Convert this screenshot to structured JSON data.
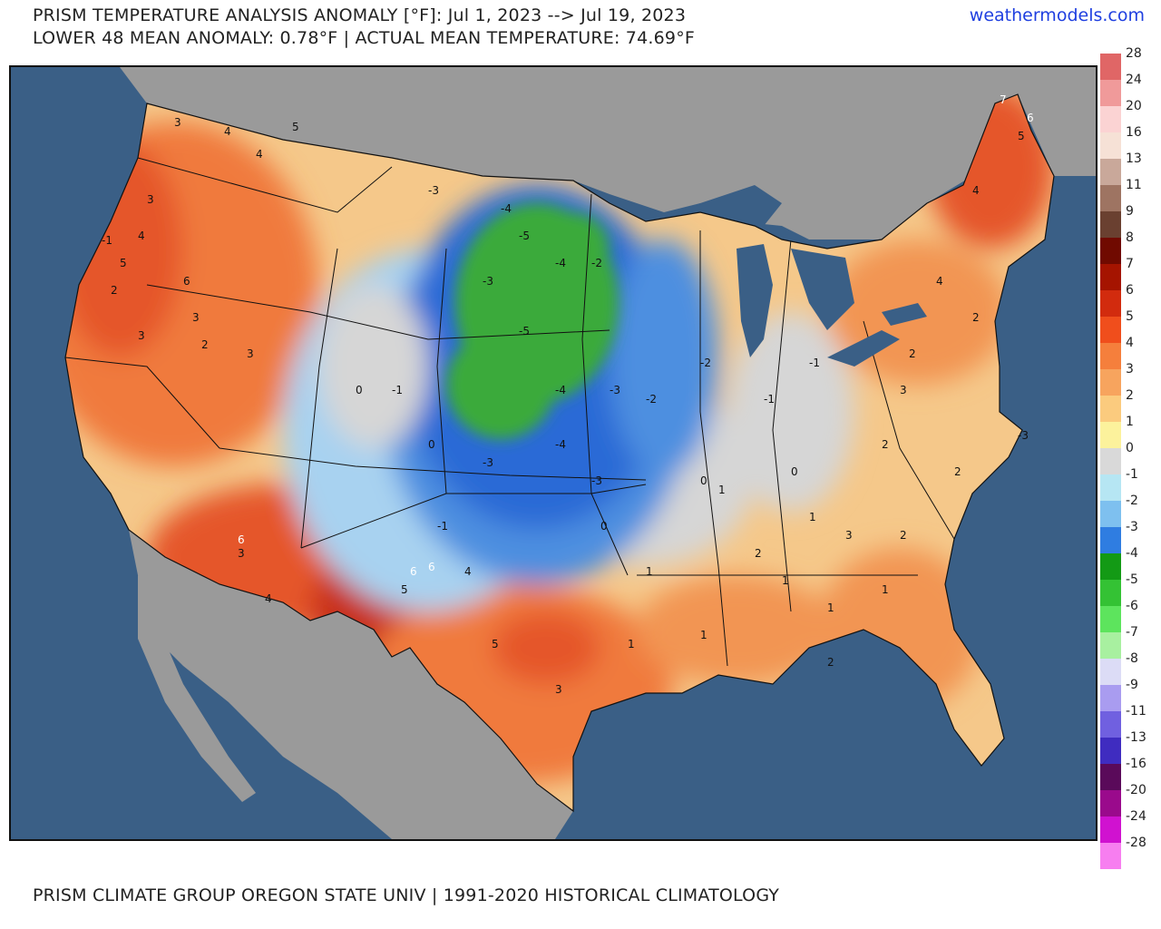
{
  "header": {
    "title_line1": "PRISM TEMPERATURE ANALYSIS ANOMALY [°F]: Jul 1, 2023 --> Jul 19, 2023",
    "title_line2": "LOWER 48 MEAN ANOMALY: 0.78°F | ACTUAL MEAN TEMPERATURE: 74.69°F",
    "site": "weathermodels.com"
  },
  "footer": {
    "text": "PRISM CLIMATE GROUP OREGON STATE UNIV | 1991-2020 HISTORICAL CLIMATOLOGY"
  },
  "colors": {
    "ocean": "#3a5f86",
    "land_outside": "#9a9a9a",
    "neutral": "#d6d6d6",
    "warm_light": "#f5c88a",
    "warm_mid": "#f29552",
    "warm_hot": "#e5562a",
    "warm_very_hot": "#c9301a",
    "cool_light": "#a8d2f0",
    "cool_mid": "#4d8fe0",
    "cool_strong": "#2a6ad6",
    "cool_green": "#3aaa3a",
    "site_link": "#1f3fe0"
  },
  "legend": [
    {
      "label": "28",
      "color": "#e06666"
    },
    {
      "label": "24",
      "color": "#f09a9a"
    },
    {
      "label": "20",
      "color": "#fbd3d3"
    },
    {
      "label": "16",
      "color": "#f6e1d6"
    },
    {
      "label": "13",
      "color": "#c9a89a"
    },
    {
      "label": "11",
      "color": "#9e7462"
    },
    {
      "label": "9",
      "color": "#6a4030"
    },
    {
      "label": "8",
      "color": "#700a00"
    },
    {
      "label": "7",
      "color": "#a51400"
    },
    {
      "label": "6",
      "color": "#d22b0e"
    },
    {
      "label": "5",
      "color": "#f04e1c"
    },
    {
      "label": "4",
      "color": "#f57f3c"
    },
    {
      "label": "3",
      "color": "#f7a45e"
    },
    {
      "label": "2",
      "color": "#fbcb7e"
    },
    {
      "label": "1",
      "color": "#fcf29c"
    },
    {
      "label": "0",
      "color": "#d9d9d9"
    },
    {
      "label": "-1",
      "color": "#b6e6f3"
    },
    {
      "label": "-2",
      "color": "#7ec0ef"
    },
    {
      "label": "-3",
      "color": "#2f7de1"
    },
    {
      "label": "-4",
      "color": "#139a15"
    },
    {
      "label": "-5",
      "color": "#34c234"
    },
    {
      "label": "-6",
      "color": "#5de45d"
    },
    {
      "label": "-7",
      "color": "#a8f0a0"
    },
    {
      "label": "-8",
      "color": "#dcdcf6"
    },
    {
      "label": "-9",
      "color": "#a99cf0"
    },
    {
      "label": "-11",
      "color": "#7060e0"
    },
    {
      "label": "-13",
      "color": "#3f2cc0"
    },
    {
      "label": "-16",
      "color": "#5a0a5a"
    },
    {
      "label": "-20",
      "color": "#9a0a8c"
    },
    {
      "label": "-24",
      "color": "#d012d0"
    },
    {
      "label": "-28",
      "color": "#f77ef0"
    }
  ],
  "map_labels": [
    {
      "text": "3"
    },
    {
      "text": "4"
    },
    {
      "text": "4"
    },
    {
      "text": "5"
    },
    {
      "text": "3"
    },
    {
      "text": "-1"
    },
    {
      "text": "4"
    },
    {
      "text": "5"
    },
    {
      "text": "2"
    },
    {
      "text": "3"
    },
    {
      "text": "3"
    },
    {
      "text": "2"
    },
    {
      "text": "6"
    },
    {
      "text": "3"
    },
    {
      "text": "-3"
    },
    {
      "text": "-4"
    },
    {
      "text": "-5"
    },
    {
      "text": "-4"
    },
    {
      "text": "-3"
    },
    {
      "text": "-2"
    },
    {
      "text": "-5"
    },
    {
      "text": "-4"
    },
    {
      "text": "-3"
    },
    {
      "text": "-2"
    },
    {
      "text": "0"
    },
    {
      "text": "-1"
    },
    {
      "text": "0"
    },
    {
      "text": "-3"
    },
    {
      "text": "-4"
    },
    {
      "text": "-3"
    },
    {
      "text": "-2"
    },
    {
      "text": "-1"
    },
    {
      "text": "-1"
    },
    {
      "text": "0"
    },
    {
      "text": "1"
    },
    {
      "text": "0"
    },
    {
      "text": "1"
    },
    {
      "text": "2"
    },
    {
      "text": "2"
    },
    {
      "text": "3"
    },
    {
      "text": "4"
    },
    {
      "text": "2"
    },
    {
      "text": "2"
    },
    {
      "text": "1"
    },
    {
      "text": "1"
    },
    {
      "text": "1"
    },
    {
      "text": "7"
    },
    {
      "text": "6"
    },
    {
      "text": "5"
    },
    {
      "text": "4"
    },
    {
      "text": "3"
    },
    {
      "text": "2"
    },
    {
      "text": "6"
    },
    {
      "text": "4"
    },
    {
      "text": "5"
    },
    {
      "text": "3"
    },
    {
      "text": "1"
    },
    {
      "text": "2"
    },
    {
      "text": "2"
    },
    {
      "text": "1"
    },
    {
      "text": "1"
    },
    {
      "text": "3"
    },
    {
      "text": "4"
    },
    {
      "text": "-1"
    },
    {
      "text": "0"
    },
    {
      "text": "6"
    },
    {
      "text": "5"
    },
    {
      "text": "6"
    },
    {
      "text": "-3"
    }
  ]
}
